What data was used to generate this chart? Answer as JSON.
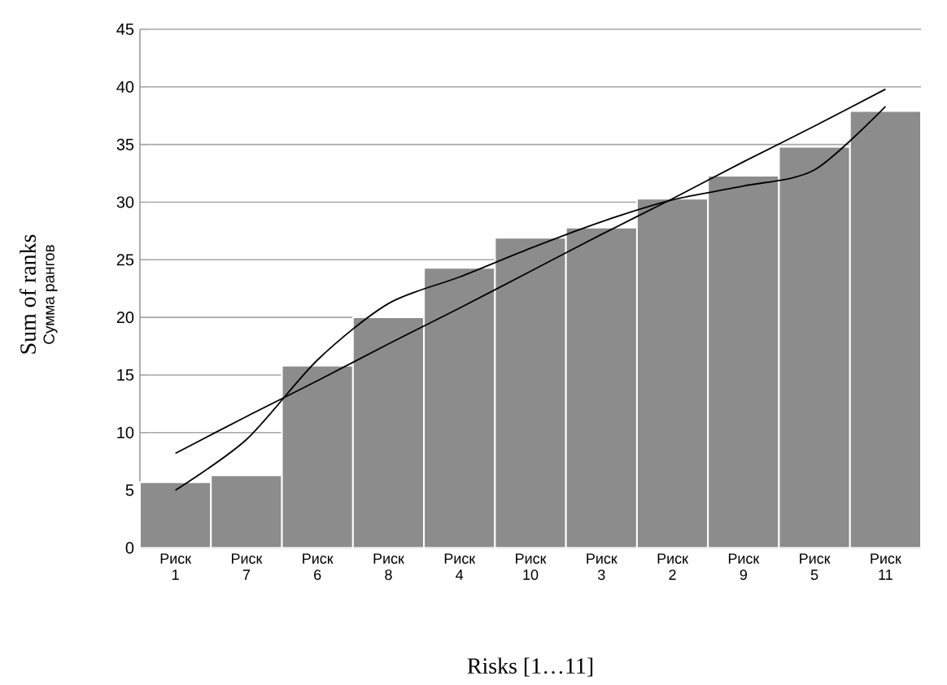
{
  "chart_data": {
    "type": "bar",
    "categories": [
      "Риск 1",
      "Риск 7",
      "Риск 6",
      "Риск 8",
      "Риск 4",
      "Риск 10",
      "Риск 3",
      "Риск 2",
      "Риск 9",
      "Риск 5",
      "Риск 11"
    ],
    "ylim": [
      0,
      45
    ],
    "yticks": [
      0,
      5,
      10,
      15,
      20,
      25,
      30,
      35,
      40,
      45
    ],
    "grid": "y",
    "ylabel": "Sum of ranks",
    "xlabel": "Risks [1…11]",
    "annotations": [
      "Сумма рангов"
    ],
    "series": [
      {
        "color": "#8c8c8c",
        "values": [
          5.7,
          6.3,
          15.8,
          20,
          24.3,
          26.9,
          27.8,
          30.3,
          32.3,
          34.8,
          37.9
        ]
      },
      {
        "type": "line",
        "color": "#000000",
        "values": [
          8.2,
          11.4,
          14.5,
          17.7,
          20.8,
          24.0,
          27.2,
          30.3,
          33.5,
          36.6,
          39.8
        ]
      },
      {
        "type": "line",
        "color": "#000000",
        "values": [
          5.0,
          9.4,
          16.3,
          21.2,
          23.5,
          26.0,
          28.3,
          30.2,
          31.4,
          32.8,
          38.3
        ]
      }
    ]
  }
}
